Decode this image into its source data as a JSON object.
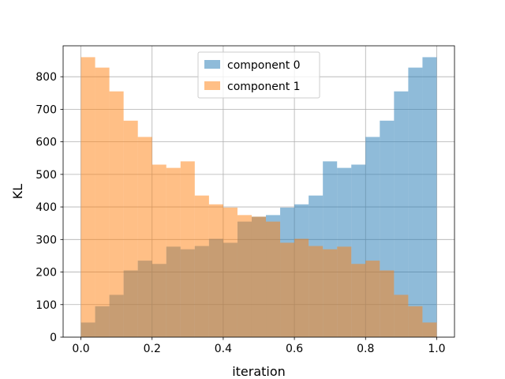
{
  "chart_data": {
    "type": "bar",
    "title": "",
    "xlabel": "iteration",
    "ylabel": "KL",
    "xlim": [
      -0.05,
      1.05
    ],
    "ylim": [
      0,
      895
    ],
    "grid": true,
    "legend_position": "top-center",
    "x_ticks": [
      {
        "value": 0.0,
        "label": "0.0"
      },
      {
        "value": 0.2,
        "label": "0.2"
      },
      {
        "value": 0.4,
        "label": "0.4"
      },
      {
        "value": 0.6,
        "label": "0.6"
      },
      {
        "value": 0.8,
        "label": "0.8"
      },
      {
        "value": 1.0,
        "label": "1.0"
      }
    ],
    "y_ticks": [
      {
        "value": 0,
        "label": "0"
      },
      {
        "value": 100,
        "label": "100"
      },
      {
        "value": 200,
        "label": "200"
      },
      {
        "value": 300,
        "label": "300"
      },
      {
        "value": 400,
        "label": "400"
      },
      {
        "value": 500,
        "label": "500"
      },
      {
        "value": 600,
        "label": "600"
      },
      {
        "value": 700,
        "label": "700"
      },
      {
        "value": 800,
        "label": "800"
      }
    ],
    "bin_edges": [
      0.0,
      0.04,
      0.08,
      0.12,
      0.16,
      0.2,
      0.24,
      0.28,
      0.32,
      0.36,
      0.4,
      0.44,
      0.48,
      0.52,
      0.56,
      0.6,
      0.64,
      0.68,
      0.72,
      0.76,
      0.8,
      0.84,
      0.88,
      0.92,
      0.96,
      1.0
    ],
    "series": [
      {
        "name": "component 0",
        "color": "#1f77b4",
        "alpha": 0.5,
        "values": [
          45,
          95,
          130,
          205,
          235,
          225,
          278,
          270,
          280,
          302,
          290,
          355,
          370,
          375,
          398,
          408,
          435,
          540,
          520,
          530,
          615,
          665,
          755,
          828,
          860
        ]
      },
      {
        "name": "component 1",
        "color": "#ff7f0e",
        "alpha": 0.5,
        "values": [
          860,
          828,
          755,
          665,
          615,
          530,
          520,
          540,
          435,
          408,
          398,
          375,
          370,
          355,
          290,
          302,
          280,
          270,
          278,
          225,
          235,
          205,
          130,
          95,
          45
        ]
      }
    ]
  }
}
